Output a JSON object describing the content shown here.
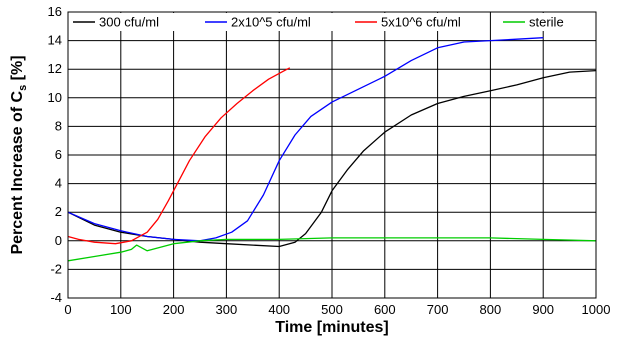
{
  "chart_data": {
    "type": "line",
    "title": "",
    "xlabel": "Time [minutes]",
    "ylabel_parts": {
      "main": "Percent Increase of C",
      "sub": "s",
      "tail": " [%]"
    },
    "xlim": [
      0,
      1000
    ],
    "ylim": [
      -4,
      16
    ],
    "x_ticks": [
      0,
      100,
      200,
      300,
      400,
      500,
      600,
      700,
      800,
      900,
      1000
    ],
    "y_ticks": [
      -4,
      -2,
      0,
      2,
      4,
      6,
      8,
      10,
      12,
      14,
      16
    ],
    "grid": true,
    "legend_position": "top",
    "series": [
      {
        "name": "300 cfu/ml",
        "color": "#000000",
        "points": [
          [
            0,
            2.0
          ],
          [
            50,
            1.1
          ],
          [
            100,
            0.6
          ],
          [
            150,
            0.3
          ],
          [
            200,
            0.1
          ],
          [
            250,
            -0.1
          ],
          [
            300,
            -0.2
          ],
          [
            350,
            -0.3
          ],
          [
            400,
            -0.4
          ],
          [
            430,
            -0.1
          ],
          [
            450,
            0.5
          ],
          [
            480,
            2.0
          ],
          [
            500,
            3.5
          ],
          [
            530,
            5.0
          ],
          [
            560,
            6.3
          ],
          [
            600,
            7.6
          ],
          [
            650,
            8.8
          ],
          [
            700,
            9.6
          ],
          [
            750,
            10.1
          ],
          [
            800,
            10.5
          ],
          [
            850,
            10.9
          ],
          [
            900,
            11.4
          ],
          [
            950,
            11.8
          ],
          [
            1000,
            11.9
          ]
        ]
      },
      {
        "name": "2x10^5 cfu/ml",
        "color": "#0000ff",
        "points": [
          [
            0,
            2.0
          ],
          [
            50,
            1.2
          ],
          [
            100,
            0.7
          ],
          [
            150,
            0.3
          ],
          [
            200,
            0.1
          ],
          [
            250,
            0.0
          ],
          [
            280,
            0.2
          ],
          [
            310,
            0.6
          ],
          [
            340,
            1.4
          ],
          [
            370,
            3.2
          ],
          [
            400,
            5.6
          ],
          [
            430,
            7.4
          ],
          [
            460,
            8.7
          ],
          [
            500,
            9.7
          ],
          [
            550,
            10.6
          ],
          [
            600,
            11.5
          ],
          [
            650,
            12.6
          ],
          [
            700,
            13.5
          ],
          [
            750,
            13.9
          ],
          [
            800,
            14.0
          ],
          [
            850,
            14.1
          ],
          [
            900,
            14.2
          ]
        ]
      },
      {
        "name": "5x10^6 cfu/ml",
        "color": "#ff0000",
        "points": [
          [
            0,
            0.3
          ],
          [
            20,
            0.1
          ],
          [
            50,
            -0.1
          ],
          [
            90,
            -0.2
          ],
          [
            120,
            0.0
          ],
          [
            150,
            0.6
          ],
          [
            170,
            1.5
          ],
          [
            190,
            2.8
          ],
          [
            210,
            4.2
          ],
          [
            230,
            5.6
          ],
          [
            260,
            7.3
          ],
          [
            290,
            8.6
          ],
          [
            320,
            9.6
          ],
          [
            350,
            10.5
          ],
          [
            380,
            11.3
          ],
          [
            410,
            11.9
          ],
          [
            420,
            12.1
          ]
        ]
      },
      {
        "name": "sterile",
        "color": "#00cc00",
        "points": [
          [
            0,
            -1.4
          ],
          [
            50,
            -1.1
          ],
          [
            100,
            -0.8
          ],
          [
            120,
            -0.6
          ],
          [
            130,
            -0.3
          ],
          [
            150,
            -0.7
          ],
          [
            200,
            -0.2
          ],
          [
            250,
            0.0
          ],
          [
            300,
            0.1
          ],
          [
            400,
            0.1
          ],
          [
            500,
            0.2
          ],
          [
            600,
            0.2
          ],
          [
            700,
            0.2
          ],
          [
            800,
            0.2
          ],
          [
            900,
            0.1
          ],
          [
            1000,
            0.0
          ]
        ]
      }
    ]
  }
}
